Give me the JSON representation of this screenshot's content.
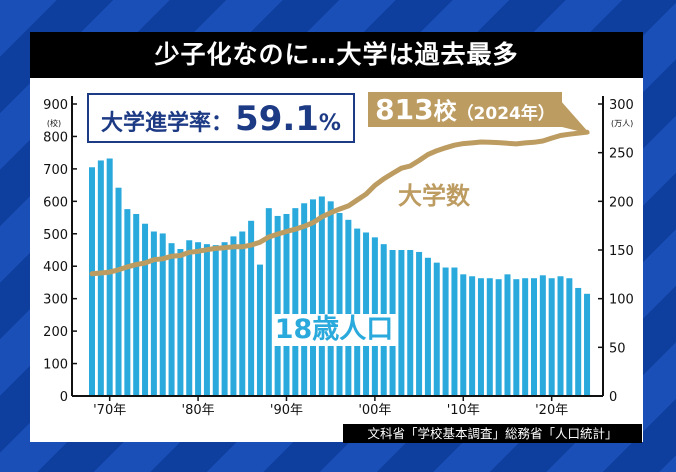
{
  "title": "少子化なのに…大学は過去最多",
  "rate_box": {
    "label": "大学進学率：",
    "value": "59.1",
    "unit": "%"
  },
  "callout": {
    "count": "813",
    "unit": "校",
    "year": "（2024年）"
  },
  "source": "文科省「学校基本調査」総務省「人口統計」",
  "colors": {
    "bars": "#29a9dc",
    "line": "#bd9c62",
    "title_bg": "#000000",
    "rate_text": "#1d3a85",
    "background": "#1a4fb8"
  },
  "chart_data": {
    "type": "bar+line",
    "x": [
      1968,
      1969,
      1970,
      1971,
      1972,
      1973,
      1974,
      1975,
      1976,
      1977,
      1978,
      1979,
      1980,
      1981,
      1982,
      1983,
      1984,
      1985,
      1986,
      1987,
      1988,
      1989,
      1990,
      1991,
      1992,
      1993,
      1994,
      1995,
      1996,
      1997,
      1998,
      1999,
      2000,
      2001,
      2002,
      2003,
      2004,
      2005,
      2006,
      2007,
      2008,
      2009,
      2010,
      2011,
      2012,
      2013,
      2014,
      2015,
      2016,
      2017,
      2018,
      2019,
      2020,
      2021,
      2022,
      2023,
      2024
    ],
    "x_tick_labels": [
      "'70年",
      "'80年",
      "'90年",
      "'00年",
      "'10年",
      "'20年"
    ],
    "x_tick_years": [
      1970,
      1980,
      1990,
      2000,
      2010,
      2020
    ],
    "series": [
      {
        "name": "18歳人口",
        "type": "bar",
        "axis": "right",
        "values": [
          235,
          242,
          244,
          214,
          192,
          187,
          177,
          169,
          167,
          157,
          151,
          160,
          158,
          156,
          155,
          158,
          164,
          169,
          180,
          135,
          193,
          185,
          187,
          193,
          198,
          202,
          205,
          200,
          188,
          181,
          172,
          168,
          163,
          156,
          150,
          150,
          150,
          148,
          142,
          137,
          132,
          132,
          125,
          123,
          121,
          121,
          120,
          125,
          120,
          121,
          121,
          124,
          121,
          123,
          121,
          111,
          105
        ]
      },
      {
        "name": "大学数",
        "type": "line",
        "axis": "left",
        "values": [
          377,
          379,
          382,
          389,
          398,
          405,
          410,
          420,
          423,
          431,
          433,
          443,
          446,
          451,
          455,
          457,
          460,
          460,
          465,
          474,
          490,
          499,
          507,
          514,
          523,
          534,
          552,
          565,
          576,
          586,
          604,
          622,
          649,
          669,
          686,
          702,
          709,
          726,
          744,
          756,
          765,
          773,
          778,
          780,
          783,
          782,
          781,
          779,
          777,
          780,
          782,
          786,
          795,
          803,
          807,
          810,
          813
        ]
      }
    ],
    "left_axis": {
      "unit": "(校)",
      "range": [
        0,
        900
      ],
      "ticks": [
        "0",
        "100",
        "200",
        "300",
        "400",
        "500",
        "600",
        "700",
        "800",
        "900"
      ]
    },
    "right_axis": {
      "unit": "(万人)",
      "range": [
        0,
        300
      ],
      "ticks": [
        "0",
        "50",
        "100",
        "150",
        "200",
        "250",
        "300"
      ]
    },
    "grid": false
  }
}
